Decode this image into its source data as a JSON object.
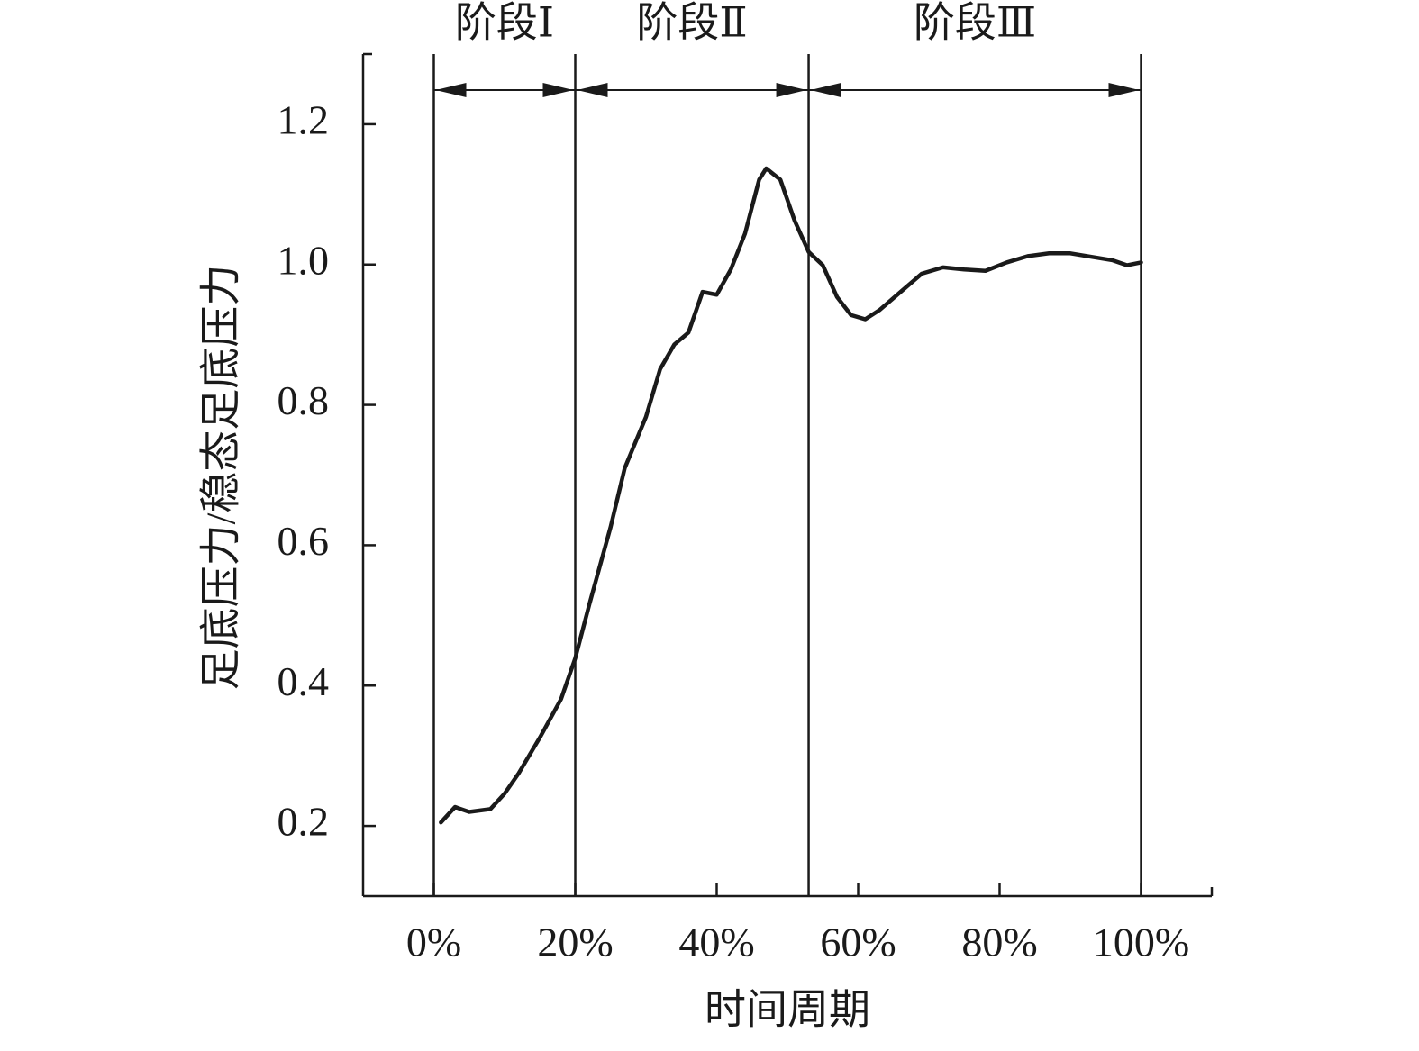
{
  "chart_data": {
    "type": "line",
    "xlabel": "时间周期",
    "ylabel": "足底压力/稳态足底压力",
    "xlim": [
      -10,
      110
    ],
    "ylim": [
      0.1,
      1.3
    ],
    "xticks": [
      {
        "value": 0,
        "label": "0%"
      },
      {
        "value": 20,
        "label": "20%"
      },
      {
        "value": 40,
        "label": "40%"
      },
      {
        "value": 60,
        "label": "60%"
      },
      {
        "value": 80,
        "label": "80%"
      },
      {
        "value": 100,
        "label": "100%"
      }
    ],
    "yticks": [
      0.2,
      0.4,
      0.6,
      0.8,
      {
        "value": 1,
        "label": "1.0"
      },
      1.2
    ],
    "phases": [
      {
        "label": "阶段Ⅰ",
        "range": [
          0,
          20
        ]
      },
      {
        "label": "阶段Ⅱ",
        "range": [
          20,
          53
        ]
      },
      {
        "label": "阶段Ⅲ",
        "range": [
          53,
          100
        ]
      }
    ],
    "series": [
      {
        "color": "#1a1a1a",
        "x": [
          1,
          3,
          5,
          8,
          10,
          12,
          15,
          18,
          20,
          22,
          25,
          27,
          30,
          32,
          34,
          36,
          38,
          40,
          42,
          44,
          46,
          47,
          49,
          51,
          53,
          55,
          57,
          59,
          61,
          63,
          66,
          69,
          72,
          75,
          78,
          81,
          84,
          87,
          90,
          93,
          96,
          98,
          100
        ],
        "values": [
          0.205,
          0.227,
          0.22,
          0.224,
          0.246,
          0.275,
          0.326,
          0.381,
          0.439,
          0.516,
          0.626,
          0.71,
          0.783,
          0.851,
          0.886,
          0.903,
          0.961,
          0.957,
          0.993,
          1.044,
          1.121,
          1.137,
          1.121,
          1.063,
          1.018,
          0.999,
          0.954,
          0.928,
          0.922,
          0.935,
          0.961,
          0.987,
          0.996,
          0.993,
          0.991,
          1.003,
          1.012,
          1.016,
          1.016,
          1.011,
          1.006,
          0.999,
          1.003
        ]
      }
    ]
  }
}
